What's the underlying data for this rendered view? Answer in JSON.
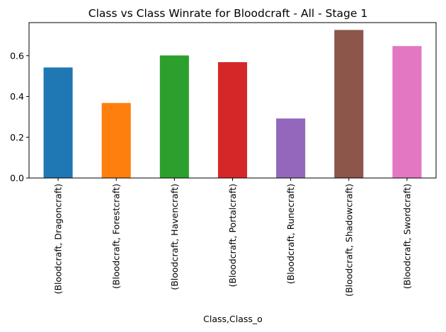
{
  "chart_data": {
    "type": "bar",
    "title": "Class vs Class Winrate for Bloodcraft - All - Stage 1",
    "xlabel": "Class,Class_o",
    "ylabel": "",
    "categories": [
      "(Bloodcraft, Dragoncraft)",
      "(Bloodcraft, Forestcraft)",
      "(Bloodcraft, Havencraft)",
      "(Bloodcraft, Portalcraft)",
      "(Bloodcraft, Runecraft)",
      "(Bloodcraft, Shadowcraft)",
      "(Bloodcraft, Swordcraft)"
    ],
    "values": [
      0.542,
      0.368,
      0.601,
      0.568,
      0.292,
      0.726,
      0.647
    ],
    "colors": [
      "#1f77b4",
      "#ff7f0e",
      "#2ca02c",
      "#d62728",
      "#9467bd",
      "#8c564b",
      "#e377c2"
    ],
    "ylim": [
      0,
      0.762
    ],
    "yticks": [
      0.0,
      0.2,
      0.4,
      0.6
    ],
    "ytick_labels": [
      "0.0",
      "0.2",
      "0.4",
      "0.6"
    ],
    "grid": false,
    "legend": "none"
  }
}
